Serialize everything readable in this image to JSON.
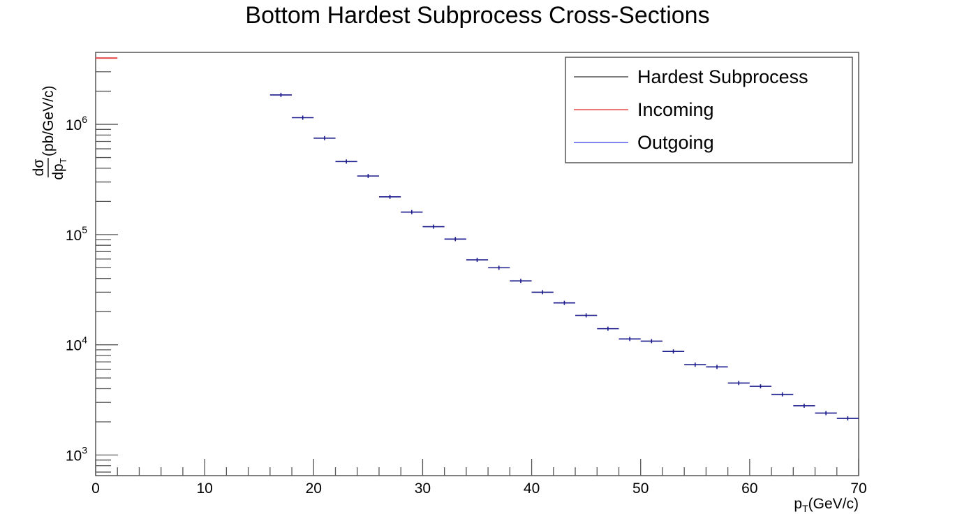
{
  "chart_data": {
    "type": "scatter",
    "title": "Bottom Hardest Subprocess Cross-Sections",
    "xlabel": {
      "main": "p",
      "sub": "T",
      "rest": "(GeV/c)"
    },
    "ylabel": {
      "num": "dσ",
      "den_main": "dp",
      "den_sub": "T",
      "rest": "(pb/GeV/c)"
    },
    "xlim": [
      0,
      70
    ],
    "ylim": [
      650,
      4500000
    ],
    "yscale": "log",
    "bin_width": 2,
    "x_ticks": [
      "0",
      "10",
      "20",
      "30",
      "40",
      "50",
      "60",
      "70"
    ],
    "y_ticks": [
      {
        "base": "10",
        "exp": "3"
      },
      {
        "base": "10",
        "exp": "4"
      },
      {
        "base": "10",
        "exp": "5"
      },
      {
        "base": "10",
        "exp": "6"
      }
    ],
    "legend": {
      "position": "top-right",
      "entries": [
        {
          "label": "Hardest Subprocess",
          "color": "#555555"
        },
        {
          "label": "Incoming",
          "color": "#e84c4c"
        },
        {
          "label": "Outgoing",
          "color": "#5a5aee"
        }
      ]
    },
    "series": [
      {
        "name": "Hardest Subprocess",
        "color": "#555555",
        "x": [
          1,
          17,
          19,
          21,
          23,
          25,
          27,
          29,
          31,
          33,
          35,
          37,
          39,
          41,
          43,
          45,
          47,
          49,
          51,
          53,
          55,
          57,
          59,
          61,
          63,
          65,
          67,
          69
        ],
        "y": [
          4000000,
          1850000,
          1150000,
          750000,
          460000,
          340000,
          220000,
          160000,
          118000,
          91000,
          59000,
          50000,
          38000,
          30000,
          24000,
          18500,
          14000,
          11300,
          10800,
          8700,
          6600,
          6300,
          4500,
          4200,
          3550,
          2800,
          2400,
          2150
        ]
      },
      {
        "name": "Incoming",
        "color": "#e84c4c",
        "x": [
          1
        ],
        "y": [
          4000000
        ]
      },
      {
        "name": "Outgoing",
        "color": "#5a5aee",
        "x": [
          17,
          19,
          21,
          23,
          25,
          27,
          29,
          31,
          33,
          35,
          37,
          39,
          41,
          43,
          45,
          47,
          49,
          51,
          53,
          55,
          57,
          59,
          61,
          63,
          65,
          67,
          69
        ],
        "y": [
          1850000,
          1150000,
          750000,
          460000,
          340000,
          220000,
          160000,
          118000,
          91000,
          59000,
          50000,
          38000,
          30000,
          24000,
          18500,
          14000,
          11300,
          10800,
          8700,
          6600,
          6300,
          4500,
          4200,
          3550,
          2800,
          2400,
          2150
        ]
      }
    ],
    "colors": {
      "frame": "#555555",
      "outgoing_marker": "#1a1a8c",
      "axis_text": "#000000"
    }
  }
}
